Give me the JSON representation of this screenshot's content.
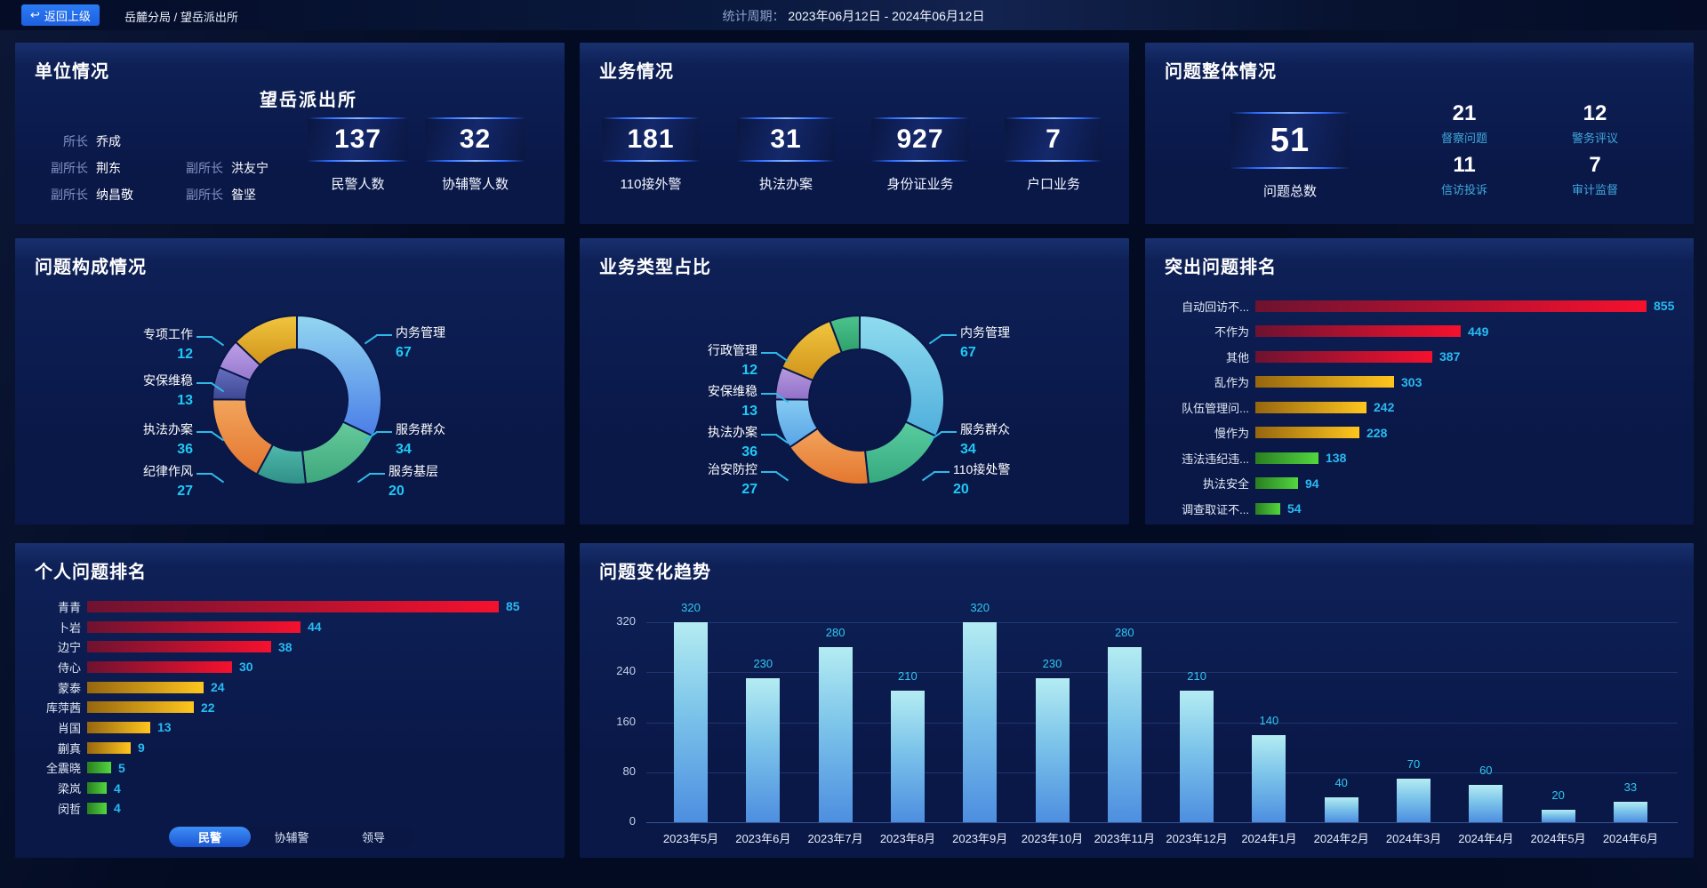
{
  "topbar": {
    "back_label": "返回上级",
    "breadcrumb": "岳麓分局 / 望岳派出所",
    "period_label": "统计周期：",
    "period_value": "2023年06月12日 - 2024年06月12日"
  },
  "unit": {
    "title": "单位情况",
    "station_name": "望岳派出所",
    "roster": [
      {
        "role": "所长",
        "name": "乔成"
      },
      {
        "role": "副所长",
        "name": "荆东"
      },
      {
        "role": "副所长",
        "name": "洪友宁"
      },
      {
        "role": "副所长",
        "name": "纳昌敬"
      },
      {
        "role": "副所长",
        "name": "昝坚"
      }
    ],
    "stats": [
      {
        "value": "137",
        "label": "民警人数"
      },
      {
        "value": "32",
        "label": "协辅警人数"
      }
    ]
  },
  "business": {
    "title": "业务情况",
    "stats": [
      {
        "value": "181",
        "label": "110接外警"
      },
      {
        "value": "31",
        "label": "执法办案"
      },
      {
        "value": "927",
        "label": "身份证业务"
      },
      {
        "value": "7",
        "label": "户口业务"
      }
    ]
  },
  "problem_overview": {
    "title": "问题整体情况",
    "total": {
      "value": "51",
      "label": "问题总数"
    },
    "stats": [
      {
        "value": "21",
        "label": "督察问题"
      },
      {
        "value": "12",
        "label": "警务评议"
      },
      {
        "value": "11",
        "label": "信访投诉"
      },
      {
        "value": "7",
        "label": "审计监督"
      }
    ]
  },
  "colors": {
    "accent_cyan": "#1FC9F5",
    "panel_bg": "#0A1848",
    "bar_red": [
      "#6E1230",
      "#F5112E"
    ],
    "bar_gold": [
      "#96660F",
      "#FFC61E"
    ],
    "bar_green": [
      "#2A7E21",
      "#52D73F"
    ],
    "trend_bar": [
      "#B4ECF2",
      "#4E8EE0"
    ]
  },
  "chart_data": [
    {
      "id": "problem_composition",
      "type": "pie",
      "title": "问题构成情况",
      "legend_position": "around",
      "segments": [
        {
          "name": "内务管理",
          "value": 67,
          "color": [
            "#93D7F0",
            "#4A7DE8"
          ]
        },
        {
          "name": "服务群众",
          "value": 34,
          "color": [
            "#66CB9B",
            "#3DA67C"
          ]
        },
        {
          "name": "服务基层",
          "value": 20,
          "color": [
            "#4FB9AC",
            "#2F8F86"
          ]
        },
        {
          "name": "执法办案",
          "value": 36,
          "color": [
            "#F2A45C",
            "#E4762F"
          ]
        },
        {
          "name": "安保维稳",
          "value": 13,
          "color": [
            "#6670C2",
            "#3F4792"
          ]
        },
        {
          "name": "专项工作",
          "value": 12,
          "color": [
            "#BDA0E8",
            "#9678CE"
          ]
        },
        {
          "name": "纪律作风",
          "value": 27,
          "color": [
            "#F0C63F",
            "#D1931A"
          ]
        }
      ]
    },
    {
      "id": "business_type_ratio",
      "type": "pie",
      "title": "业务类型占比",
      "legend_position": "around",
      "segments": [
        {
          "name": "内务管理",
          "value": 67,
          "color": [
            "#8FDCEF",
            "#4FAEDB"
          ]
        },
        {
          "name": "服务群众",
          "value": 34,
          "color": [
            "#5ACCA0",
            "#35A87E"
          ]
        },
        {
          "name": "执法办案",
          "value": 36,
          "color": [
            "#F2A45C",
            "#E4762F"
          ]
        },
        {
          "name": "110接处警",
          "value": 20,
          "color": [
            "#85CBF2",
            "#57A3E6"
          ]
        },
        {
          "name": "安保维稳",
          "value": 13,
          "color": [
            "#B79BDE",
            "#9070C8"
          ]
        },
        {
          "name": "治安防控",
          "value": 27,
          "color": [
            "#F0C63F",
            "#D1931A"
          ]
        },
        {
          "name": "行政管理",
          "value": 12,
          "color": [
            "#4CC48E",
            "#2FA06C"
          ]
        }
      ]
    },
    {
      "id": "top_problems",
      "type": "bar",
      "orientation": "horizontal",
      "title": "突出问题排名",
      "categories": [
        "自动回访不...",
        "不作为",
        "其他",
        "乱作为",
        "队伍管理问...",
        "慢作为",
        "违法违纪违...",
        "执法安全",
        "调查取证不..."
      ],
      "values": [
        855,
        449,
        387,
        303,
        242,
        228,
        138,
        94,
        54
      ],
      "palette": [
        "red",
        "red",
        "red",
        "gold",
        "gold",
        "gold",
        "green",
        "green",
        "green"
      ],
      "xlim": [
        0,
        855
      ],
      "grid": false
    },
    {
      "id": "personal_ranking",
      "type": "bar",
      "orientation": "horizontal",
      "title": "个人问题排名",
      "categories": [
        "青青",
        "卜岩",
        "边宁",
        "侍心",
        "蒙泰",
        "库萍茜",
        "肖国",
        "蒯真",
        "全震晓",
        "梁岚",
        "闵哲"
      ],
      "values": [
        85,
        44,
        38,
        30,
        24,
        22,
        13,
        9,
        5,
        4,
        4
      ],
      "palette": [
        "red",
        "red",
        "red",
        "red",
        "gold",
        "gold",
        "gold",
        "gold",
        "green",
        "green",
        "green"
      ],
      "xlim": [
        0,
        85
      ],
      "grid": false,
      "tabs": [
        {
          "label": "民警",
          "active": true
        },
        {
          "label": "协辅警",
          "active": false
        },
        {
          "label": "领导",
          "active": false
        }
      ]
    },
    {
      "id": "problem_trend",
      "type": "bar",
      "orientation": "vertical",
      "title": "问题变化趋势",
      "categories": [
        "2023年5月",
        "2023年6月",
        "2023年7月",
        "2023年8月",
        "2023年9月",
        "2023年10月",
        "2023年11月",
        "2023年12月",
        "2024年1月",
        "2024年2月",
        "2024年3月",
        "2024年4月",
        "2024年5月",
        "2024年6月"
      ],
      "values": [
        320,
        230,
        280,
        210,
        320,
        230,
        280,
        210,
        140,
        40,
        70,
        60,
        20,
        33
      ],
      "ylim": [
        0,
        320
      ],
      "yticks": [
        0,
        80,
        160,
        240,
        320
      ],
      "grid": true
    }
  ]
}
